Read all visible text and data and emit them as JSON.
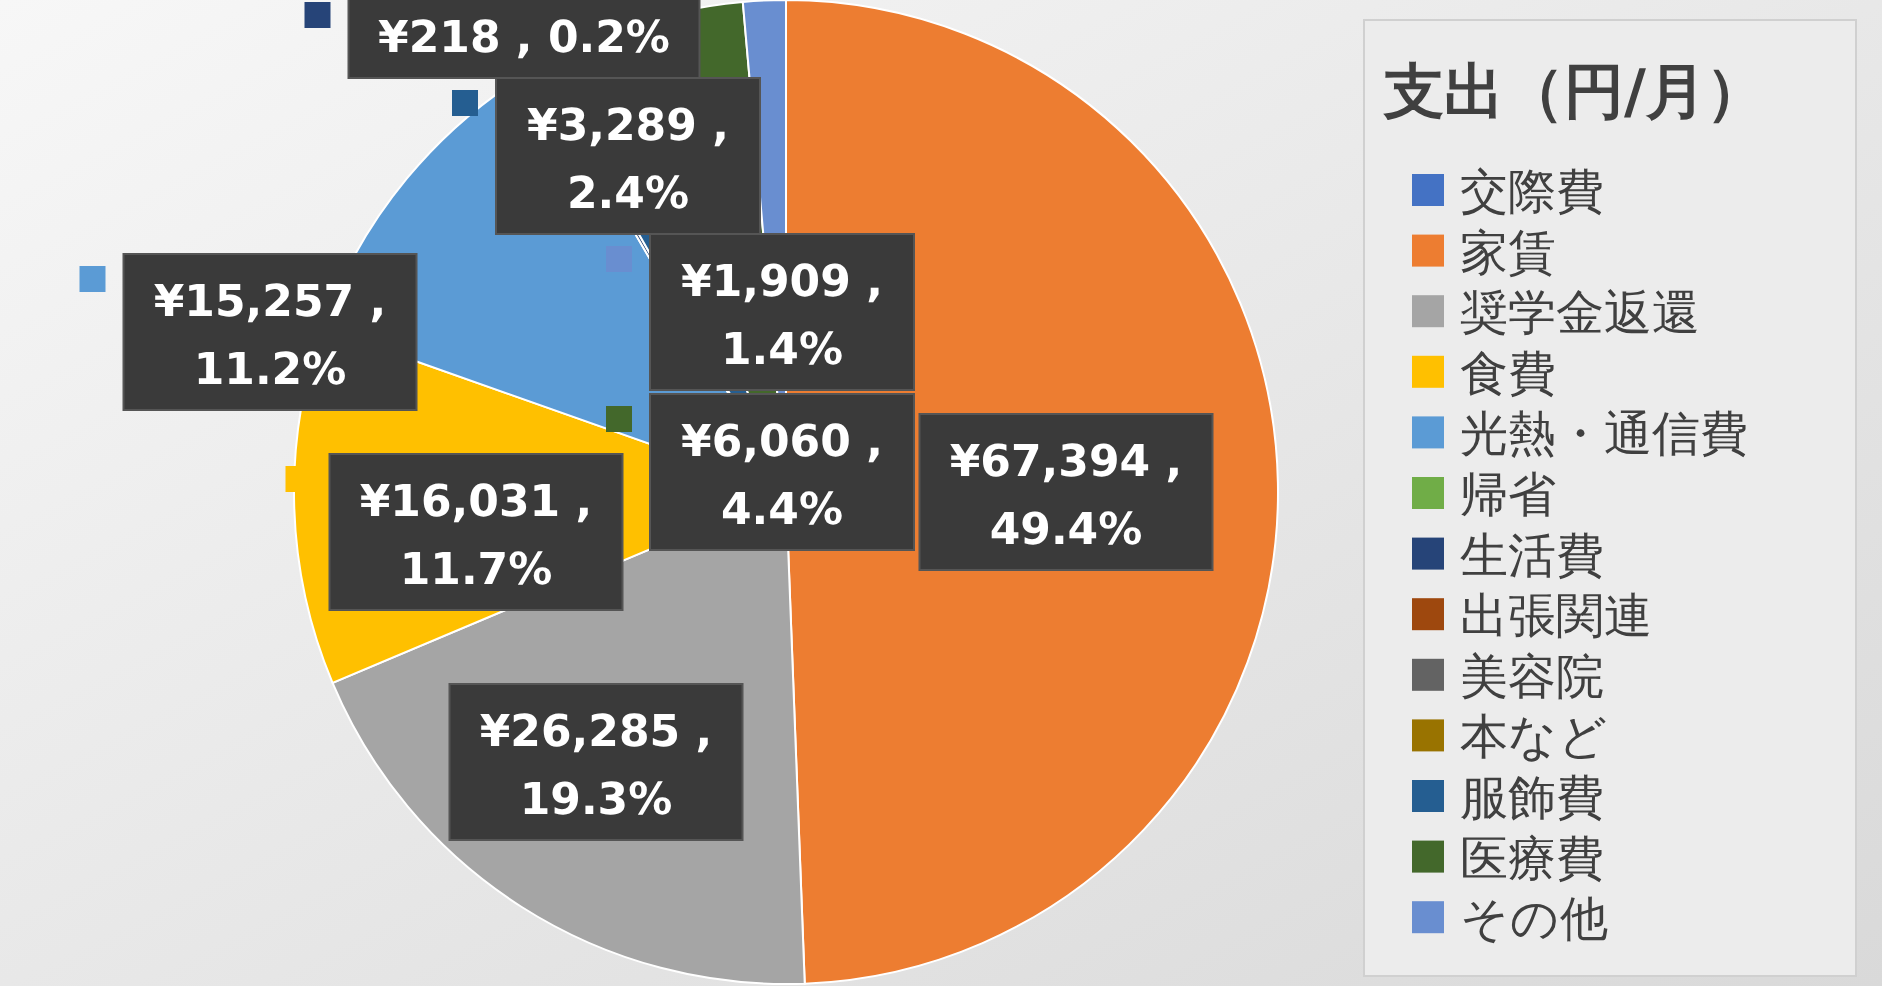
{
  "chart_data": {
    "type": "pie",
    "legend_title": "支出（円/月）",
    "legend": "right",
    "categories": [
      "交際費",
      "家賃",
      "奨学金返還",
      "食費",
      "光熱・通信費",
      "帰省",
      "生活費",
      "出張関連",
      "美容院",
      "本など",
      "服飾費",
      "医療費",
      "その他"
    ],
    "values": [
      0,
      67394,
      26285,
      16031,
      15257,
      0,
      218,
      0,
      0,
      0,
      3289,
      6060,
      1909
    ],
    "colors": [
      "#4472c4",
      "#ed7d31",
      "#a5a5a5",
      "#ffc000",
      "#5b9bd5",
      "#70ad47",
      "#264478",
      "#9e480e",
      "#636363",
      "#997300",
      "#255e91",
      "#43682b",
      "#698ed0"
    ],
    "value_labels": [
      null,
      "¥67,394 , 49.4%",
      "¥26,285 , 19.3%",
      "¥16,031 , 11.7%",
      "¥15,257 , 11.2%",
      null,
      "¥218 , 0.2%",
      null,
      null,
      null,
      "¥3,289 , 2.4%",
      "¥6,060 , 4.4%",
      "¥1,909 , 1.4%"
    ]
  }
}
